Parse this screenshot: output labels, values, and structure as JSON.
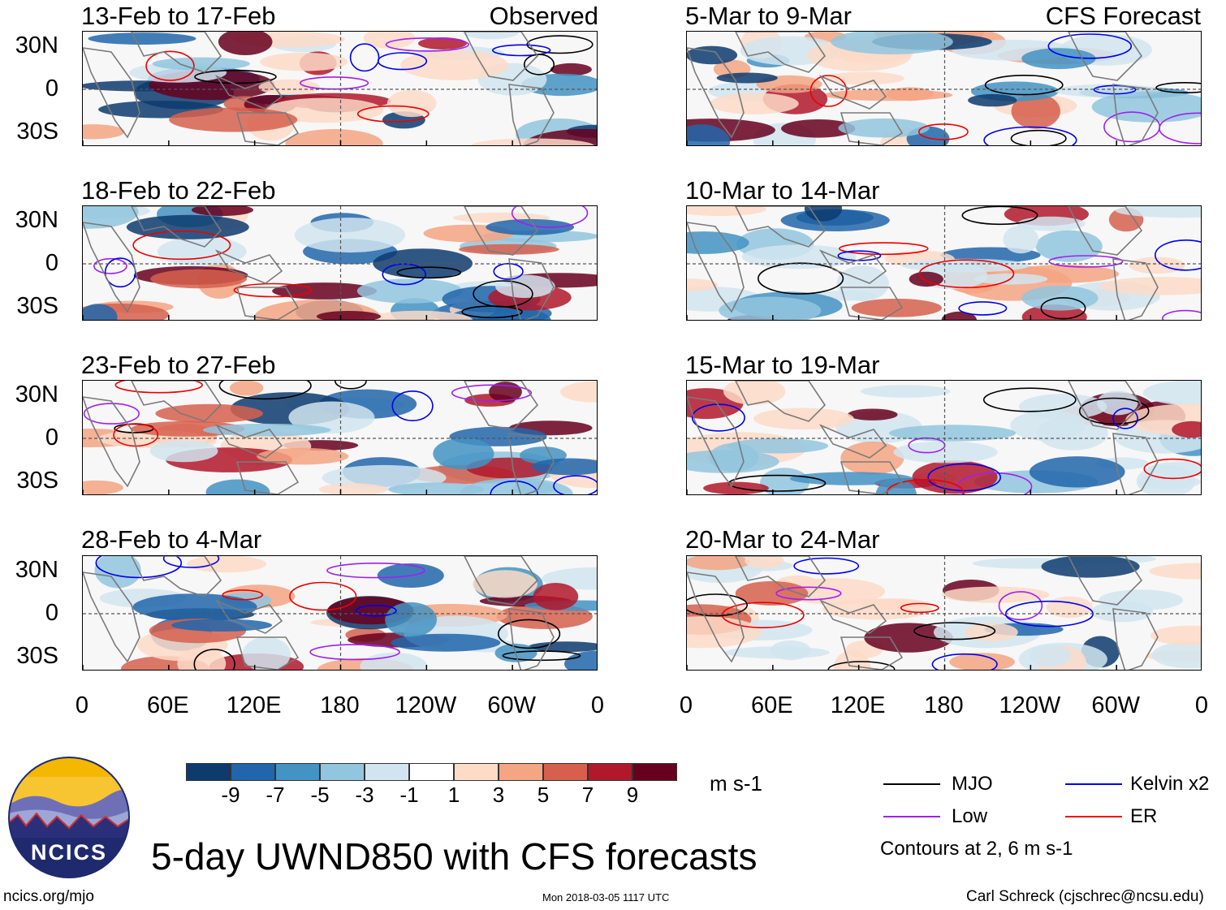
{
  "chart_data": {
    "type": "heatmap",
    "title": "5-day UWND850 with CFS forecasts",
    "variable": "UWND850",
    "units": "m s-1",
    "xlabel": "",
    "ylabel": "",
    "lat_ticks": [
      "30N",
      "0",
      "30S"
    ],
    "lon_ticks": [
      "0",
      "60E",
      "120E",
      "180",
      "120W",
      "60W",
      "0"
    ],
    "lat_range": [
      -40,
      40
    ],
    "lon_range": [
      0,
      360
    ],
    "observed_label": "Observed",
    "forecast_label": "CFS Forecast",
    "panels_observed": [
      {
        "title": "13-Feb to 17-Feb"
      },
      {
        "title": "18-Feb to 22-Feb"
      },
      {
        "title": "23-Feb to 27-Feb"
      },
      {
        "title": "28-Feb to 4-Mar"
      }
    ],
    "panels_forecast": [
      {
        "title": "5-Mar to 9-Mar"
      },
      {
        "title": "10-Mar to 14-Mar"
      },
      {
        "title": "15-Mar to 19-Mar"
      },
      {
        "title": "20-Mar to 24-Mar"
      }
    ],
    "colorbar": {
      "labels": [
        "-9",
        "-7",
        "-5",
        "-3",
        "-1",
        "1",
        "3",
        "5",
        "7",
        "9"
      ],
      "colors": [
        "#0d3b6e",
        "#2166ac",
        "#4393c3",
        "#92c5de",
        "#d1e5f0",
        "#ffffff",
        "#fddbc7",
        "#f4a582",
        "#d6604d",
        "#b2182b",
        "#67001f"
      ]
    },
    "legend": [
      {
        "name": "MJO",
        "color": "#000000"
      },
      {
        "name": "Kelvin x2",
        "color": "#0000ee"
      },
      {
        "name": "Low",
        "color": "#a020f0"
      },
      {
        "name": "ER",
        "color": "#ee0000"
      }
    ],
    "contour_note": "Contours at 2, 6 m s-1"
  },
  "footer": {
    "logo_text": "NCICS",
    "url": "ncics.org/mjo",
    "timestamp": "Mon 2018-03-05 1117 UTC",
    "author": "Carl Schreck (cjschrec@ncsu.edu)"
  }
}
